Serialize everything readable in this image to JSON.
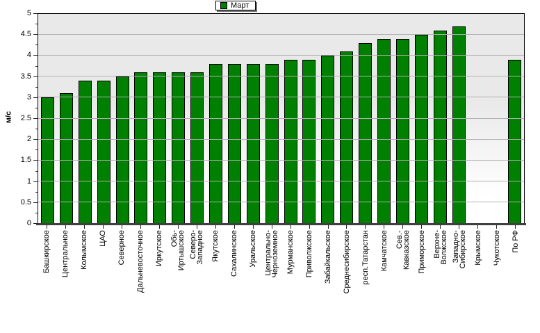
{
  "chart_data": {
    "type": "bar",
    "title": "",
    "xlabel": "",
    "ylabel": "м/с",
    "ylim": [
      0,
      5
    ],
    "y_major_step": 0.5,
    "y_minor_step": 0.25,
    "y_tick_labels": [
      "0",
      "0.5",
      "1",
      "1.5",
      "2",
      "2.5",
      "3",
      "3.5",
      "4",
      "4.5",
      "5"
    ],
    "grid": "horizontal",
    "legend_position": "top-center",
    "categories": [
      "Башкирское",
      "Центральное",
      "Колымское",
      "ЦАО",
      "Северное",
      "Дальневосточное",
      "Иркутское",
      "Обь-\nИртышское",
      "Северо-\nЗападное",
      "Якутское",
      "Сахалинское",
      "Уральское",
      "Центрально-\nЧерноземное",
      "Мурманское",
      "Приволжское",
      "Забайкальское",
      "Среднесибирское",
      "респ.Татарстан",
      "Камчатское",
      "Сев.-\nКавказское",
      "Приморское",
      "Верхне-\nВолжское",
      "Западно-\nСибирское",
      "Крымское",
      "Чукотское",
      "По РФ"
    ],
    "series": [
      {
        "name": "Март",
        "color": "#008000",
        "values": [
          3.0,
          3.1,
          3.4,
          3.4,
          3.5,
          3.6,
          3.6,
          3.6,
          3.6,
          3.8,
          3.8,
          3.8,
          3.8,
          3.9,
          3.9,
          4.0,
          4.1,
          4.3,
          4.4,
          4.4,
          4.5,
          4.6,
          4.7,
          null,
          null,
          3.9
        ]
      }
    ]
  },
  "colors": {
    "bar_fill": "#008000",
    "bar_border": "#000000",
    "gridline": "#b0b0b0",
    "axis_line": "#3f3f3f",
    "plot_bg_top": "#e9e9e9",
    "plot_bg_bottom": "#ffffff"
  }
}
